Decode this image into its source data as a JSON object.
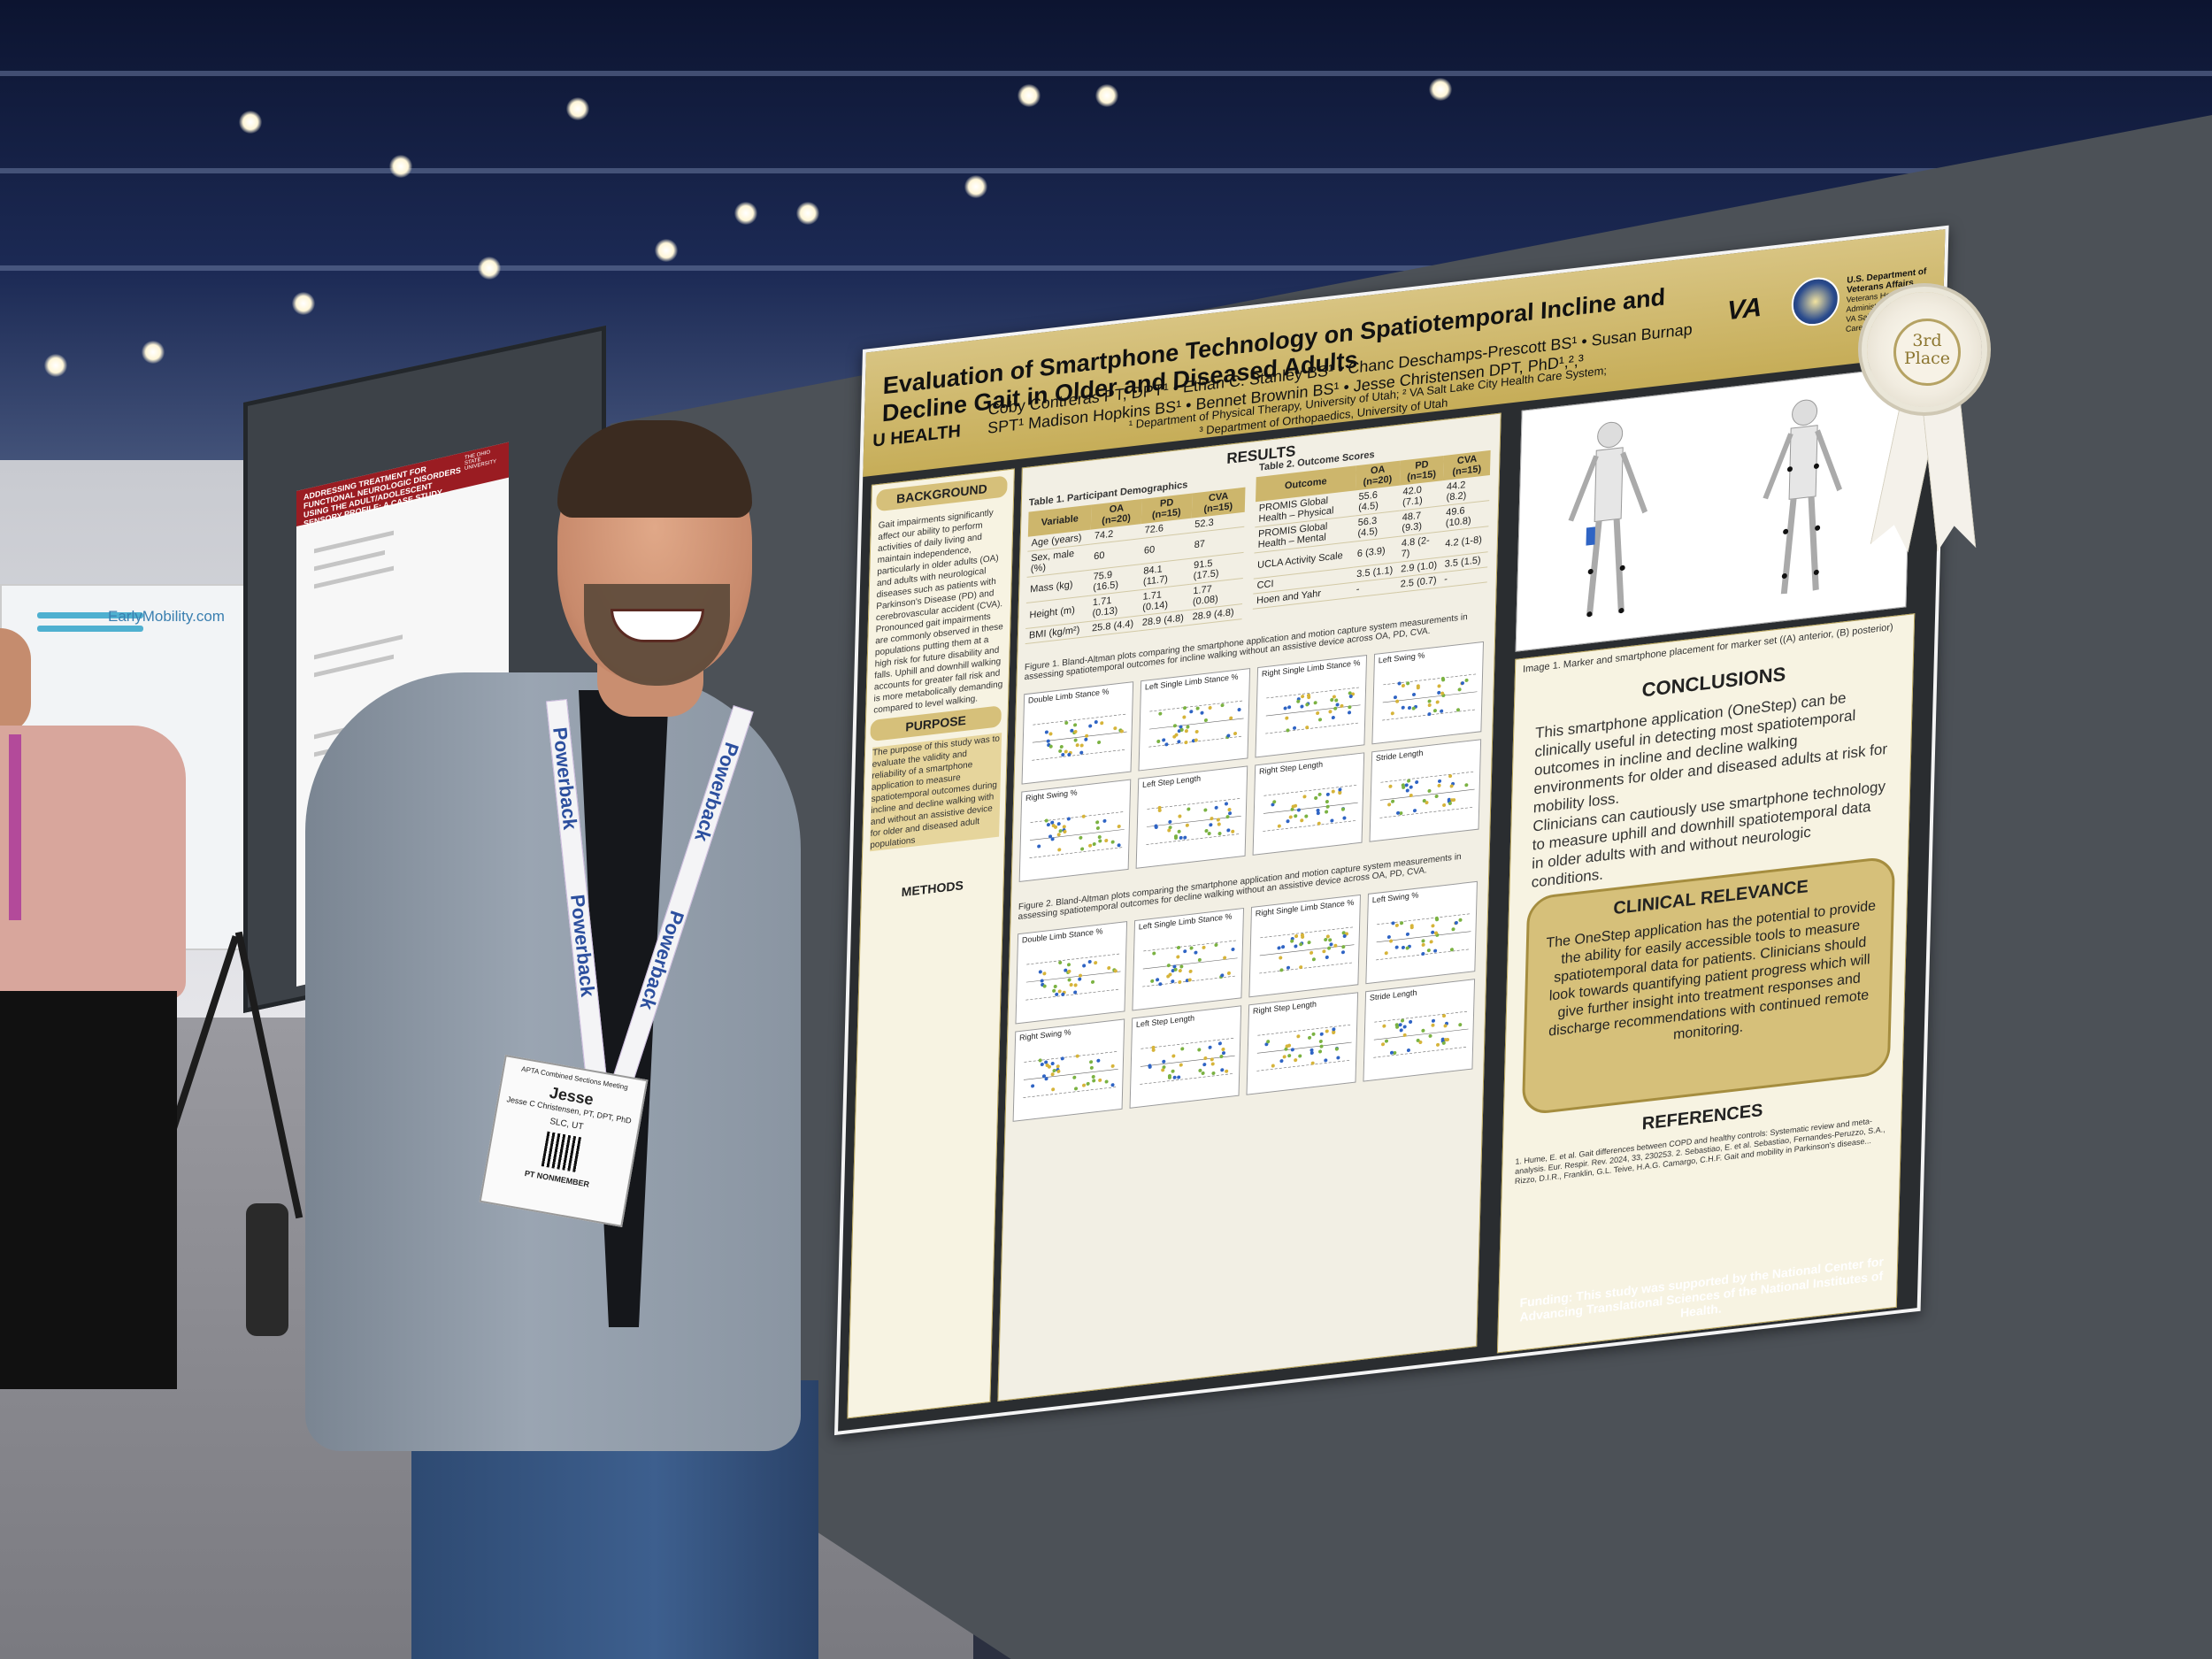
{
  "scene": "photo",
  "colors": {
    "poster_gold": "#c6ad58",
    "board_gray": "#4c5157",
    "jacket": "#8a95a2"
  },
  "neighbor_poster": {
    "title": "ADDRESSING TREATMENT FOR FUNCTIONAL NEUROLOGIC DISORDERS USING THE ADULT/ADOLESCENT SENSORY PROFILE: A CASE STUDY",
    "institution": "THE OHIO STATE UNIVERSITY",
    "booth_brand": "EarlyMobility.com"
  },
  "poster": {
    "title": "Evaluation of Smartphone Technology on Spatiotemporal Incline and Decline Gait in Older and Diseased Adults",
    "authors": "Coby Contreras PT, DPT¹ • Ethan C. Stanley BS¹ • Chanc Deschamps-Prescott BS¹ • Susan Burnap SPT¹ Madison Hopkins BS¹ • Bennet Brownin BS¹ • Jesse Christensen DPT, PhD¹,²,³",
    "affiliation_1": "¹ Department of Physical Therapy, University of Utah; ² VA Salt Lake City Health Care System;",
    "affiliation_2": "³ Department of Orthopaedics, University of Utah",
    "uhealth": "U HEALTH",
    "va": "VA",
    "va_dept": "U.S. Department of Veterans Affairs",
    "va_admin": "Veterans Health Administration",
    "va_system": "VA Salt Lake City Health Care System",
    "sections": {
      "background": "BACKGROUND",
      "background_text": "Gait impairments significantly affect our ability to perform activities of daily living and maintain independence, particularly in older adults (OA) and adults with neurological diseases such as patients with Parkinson's Disease (PD) and cerebrovascular accident (CVA). Pronounced gait impairments are commonly observed in these populations putting them at a high risk for future disability and falls. Uphill and downhill walking accounts for greater fall risk and is more metabolically demanding compared to level walking.",
      "purpose": "PURPOSE",
      "purpose_text": "The purpose of this study was to evaluate the validity and reliability of a smartphone application to measure spatiotemporal outcomes during incline and decline walking with and without an assistive device for older and diseased adult populations",
      "methods": "METHODS",
      "results": "RESULTS",
      "conclusions": "CONCLUSIONS",
      "clinical": "CLINICAL RELEVANCE",
      "references": "REFERENCES"
    },
    "table1": {
      "title": "Table 1. Participant Demographics",
      "headers": [
        "Variable",
        "OA (n=20)",
        "PD (n=15)",
        "CVA (n=15)"
      ],
      "rows": [
        [
          "Age (years)",
          "74.2",
          "72.6",
          "52.3"
        ],
        [
          "Sex, male (%)",
          "60",
          "60",
          "87"
        ],
        [
          "Mass (kg)",
          "75.9 (16.5)",
          "84.1 (11.7)",
          "91.5 (17.5)"
        ],
        [
          "Height (m)",
          "1.71 (0.13)",
          "1.71 (0.14)",
          "1.77 (0.08)"
        ],
        [
          "BMI (kg/m²)",
          "25.8 (4.4)",
          "28.9 (4.8)",
          "28.9 (4.8)"
        ]
      ]
    },
    "table2": {
      "title": "Table 2. Outcome Scores",
      "headers": [
        "Outcome",
        "OA (n=20)",
        "PD (n=15)",
        "CVA (n=15)"
      ],
      "rows": [
        [
          "PROMIS Global Health – Physical",
          "55.6 (4.5)",
          "42.0 (7.1)",
          "44.2 (8.2)"
        ],
        [
          "PROMIS Global Health – Mental",
          "56.3 (4.5)",
          "48.7 (9.3)",
          "49.6 (10.8)"
        ],
        [
          "UCLA Activity Scale",
          "6 (3.9)",
          "4.8 (2-7)",
          "4.2 (1-8)"
        ],
        [
          "CCI",
          "3.5 (1.1)",
          "2.9 (1.0)",
          "3.5 (1.5)"
        ],
        [
          "Hoen and Yahr",
          "-",
          "2.5 (0.7)",
          "-"
        ]
      ]
    },
    "fig1_caption": "Figure 1. Bland-Altman plots comparing the smartphone application and motion capture system measurements in assessing spatiotemporal outcomes for incline walking without an assistive device across OA, PD, CVA.",
    "fig2_caption": "Figure 2. Bland-Altman plots comparing the smartphone application and motion capture system measurements in assessing spatiotemporal outcomes for decline walking without an assistive device across OA, PD, CVA.",
    "plot_titles": [
      "Double Limb Stance %",
      "Left Single Limb Stance %",
      "Right Single Limb Stance %",
      "Left Swing %",
      "Right Swing %",
      "Left Step Length",
      "Right Step Length",
      "Stride Length"
    ],
    "image1_caption": "Image 1. Marker and smartphone placement for marker set ((A) anterior, (B) posterior)",
    "conclusions": [
      "This smartphone application (OneStep) can be clinically useful in detecting most spatiotemporal outcomes in incline and decline walking environments for older and diseased adults at risk for mobility loss.",
      "Clinicians can cautiously use smartphone technology to measure uphill and downhill spatiotemporal data in older adults with and without neurologic conditions."
    ],
    "clinical_text": "The OneStep application has the potential to provide the ability for easily accessible tools to measure spatiotemporal data for patients. Clinicians should look towards quantifying patient progress which will give further insight into treatment responses and discharge recommendations with continued remote monitoring.",
    "references_text": "1. Hume, E. et al. Gait differences between COPD and healthy controls: Systematic review and meta-analysis. Eur. Respir. Rev. 2024, 33, 230253. 2. Sebastiao, E. et al. Sebastiao, Fernandes-Peruzzo, S.A., Rizzo, D.I.R., Franklin, G.L. Teive, H.A.G. Camargo, C.H.F. Gait and mobility in Parkinson's disease...",
    "funding": "Funding: This study was supported by the National Center for Advancing Translational Sciences of the National Institutes of Health."
  },
  "ribbon": {
    "line1": "3rd",
    "line2": "Place"
  },
  "badge": {
    "event": "APTA Combined Sections Meeting",
    "name": "Jesse",
    "full": "Jesse C Christensen, PT, DPT, PhD",
    "location": "SLC, UT",
    "tag": "PT NONMEMBER"
  },
  "lanyard": "Powerback"
}
